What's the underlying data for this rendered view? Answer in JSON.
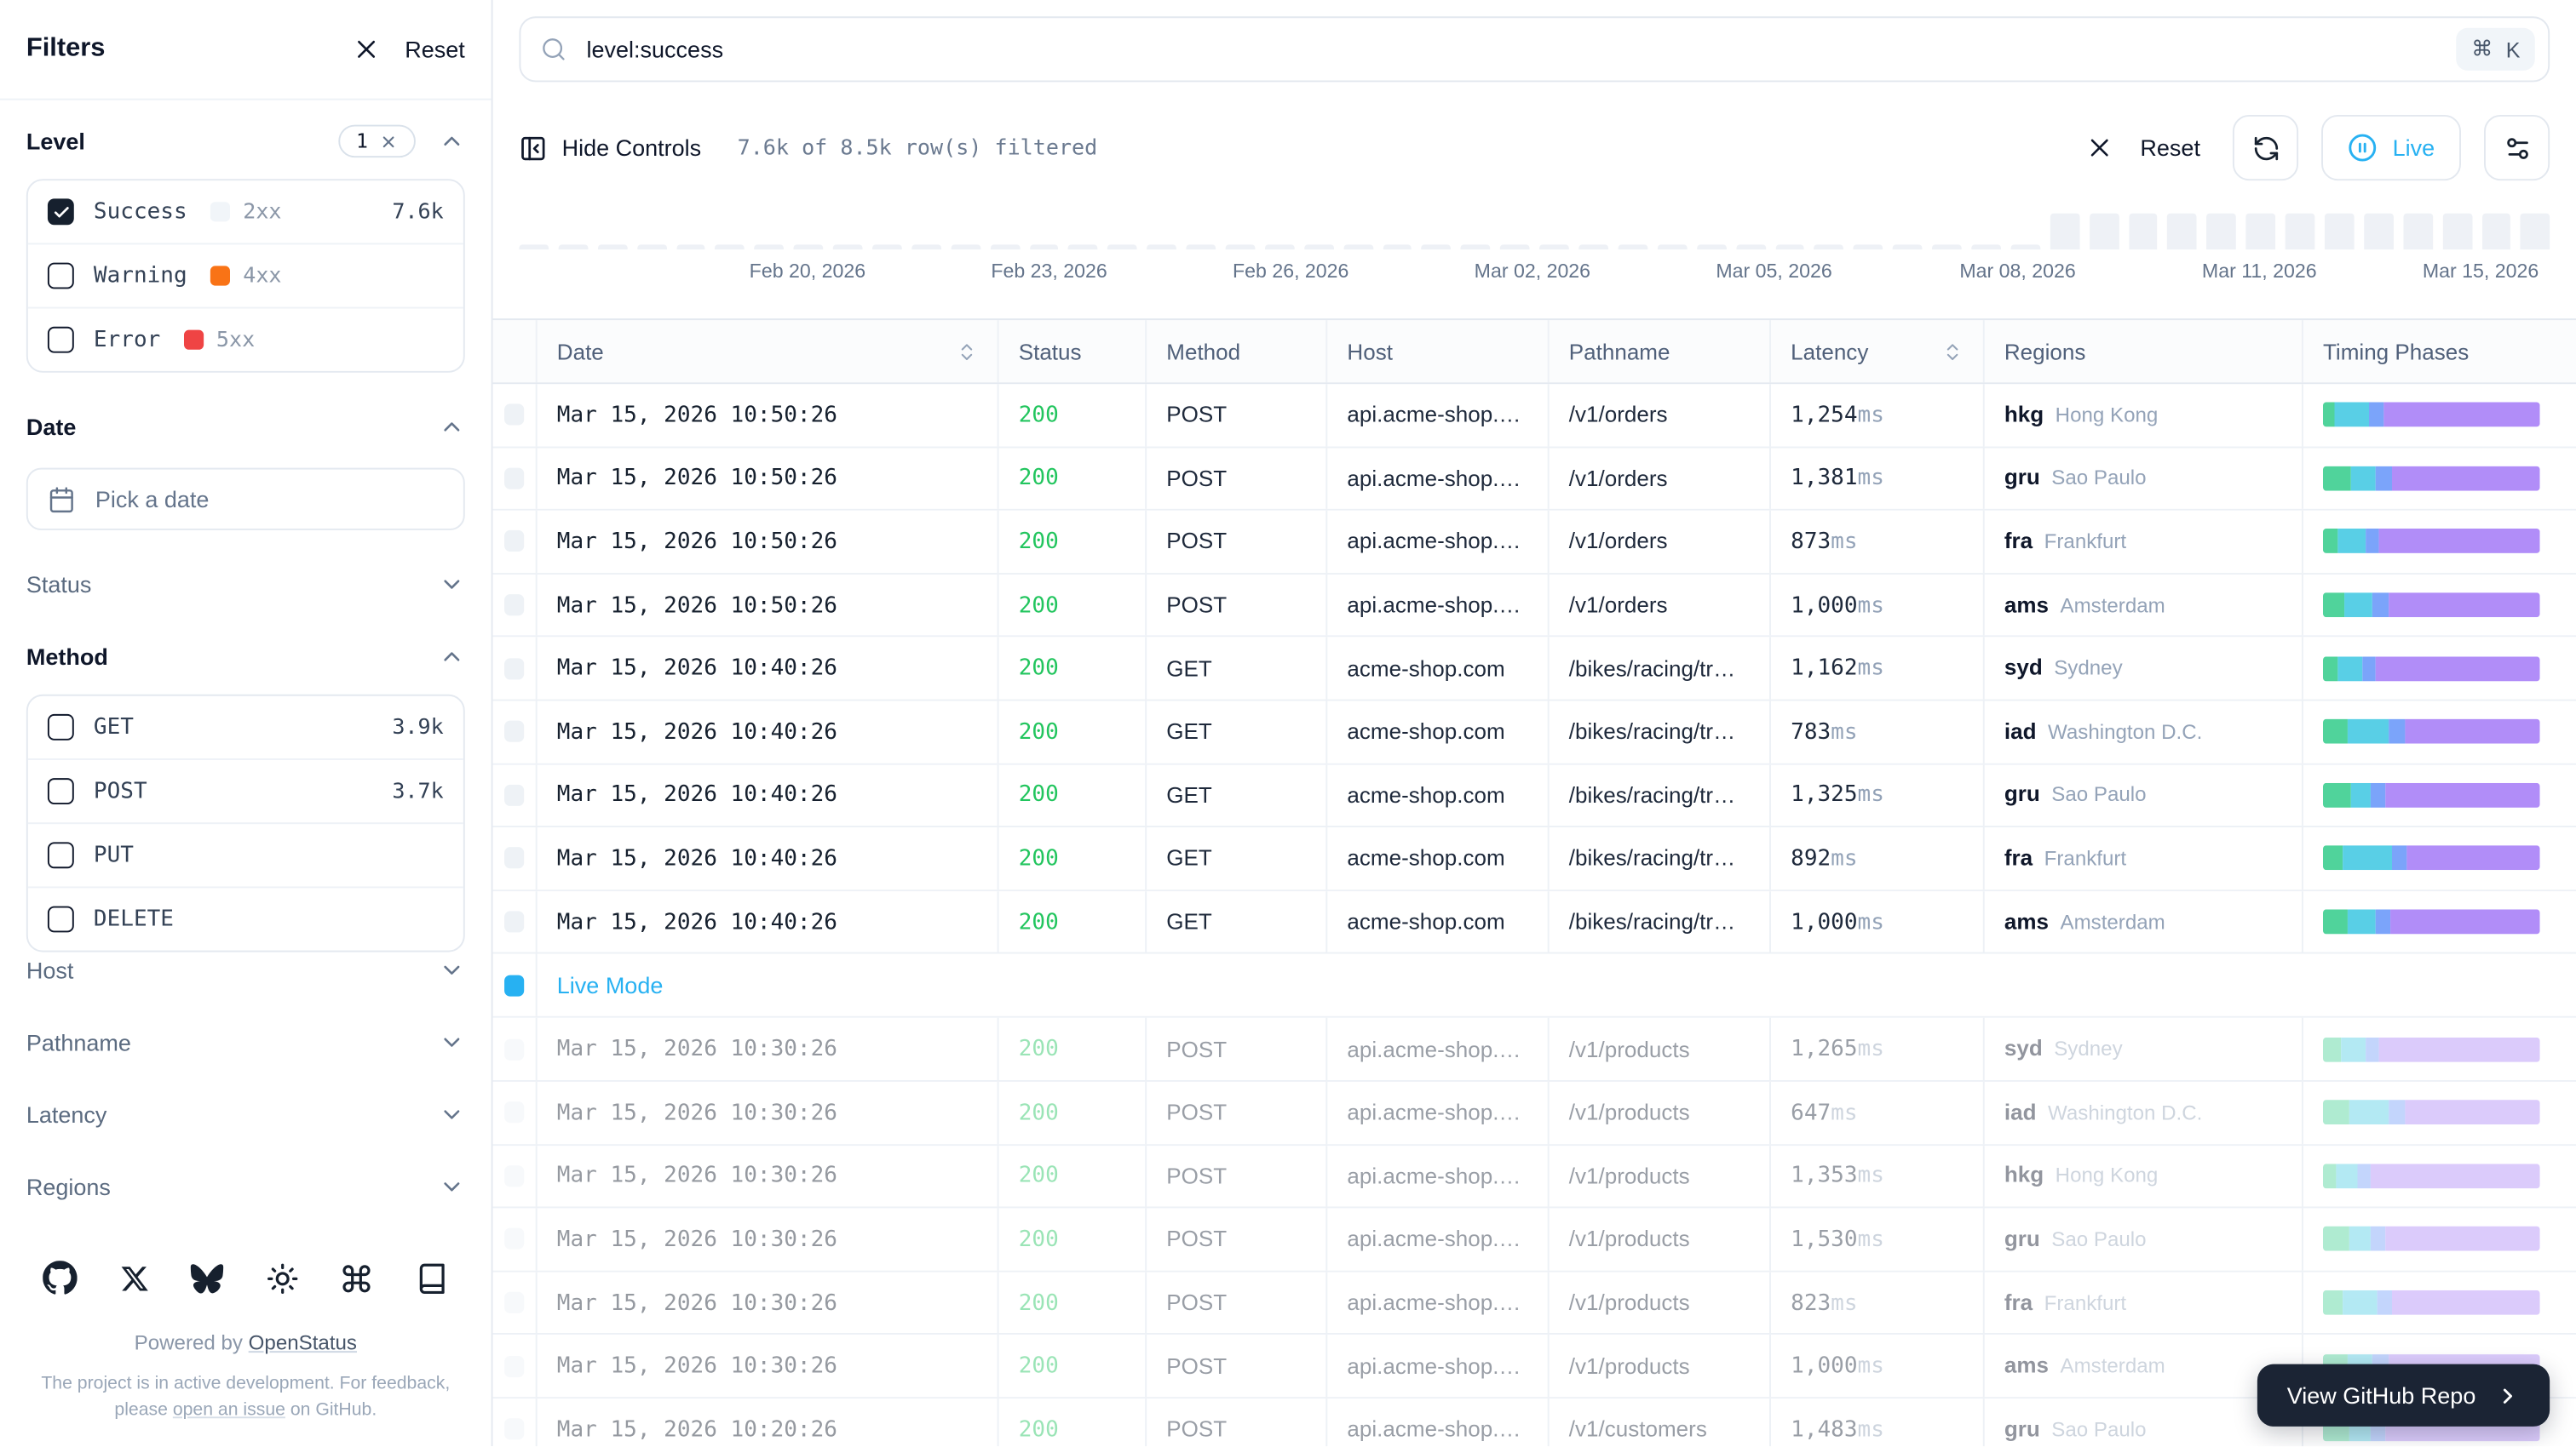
{
  "sidebar": {
    "title": "Filters",
    "reset_label": "Reset",
    "sections": {
      "level": {
        "label": "Level",
        "badge_count": "1",
        "items": [
          {
            "label": "Success",
            "code": "2xx",
            "swatch": "#f1f5f9",
            "count": "7.6k",
            "checked": true
          },
          {
            "label": "Warning",
            "code": "4xx",
            "swatch": "#f97316",
            "count": "",
            "checked": false
          },
          {
            "label": "Error",
            "code": "5xx",
            "swatch": "#ef4444",
            "count": "",
            "checked": false
          }
        ]
      },
      "date": {
        "label": "Date",
        "placeholder": "Pick a date"
      },
      "status": {
        "label": "Status"
      },
      "method": {
        "label": "Method",
        "items": [
          {
            "label": "GET",
            "count": "3.9k",
            "checked": false
          },
          {
            "label": "POST",
            "count": "3.7k",
            "checked": false
          },
          {
            "label": "PUT",
            "count": "",
            "checked": false
          },
          {
            "label": "DELETE",
            "count": "",
            "checked": false
          }
        ]
      },
      "collapsed": [
        {
          "label": "Host"
        },
        {
          "label": "Pathname"
        },
        {
          "label": "Latency"
        },
        {
          "label": "Regions"
        }
      ]
    },
    "footer": {
      "icons": [
        "github",
        "x",
        "bluesky",
        "sun",
        "command",
        "book"
      ],
      "powered_prefix": "Powered by ",
      "powered_link": "OpenStatus",
      "note_line1": "The project is in active development. For feedback,",
      "note_pre": "please ",
      "note_link": "open an issue",
      "note_post": " on GitHub."
    }
  },
  "search": {
    "value": "level:success",
    "shortcut_mod": "⌘",
    "shortcut_key": "K"
  },
  "toolbar": {
    "hide_controls": "Hide Controls",
    "filtered": "7.6k of 8.5k row(s) filtered",
    "reset": "Reset",
    "live": "Live"
  },
  "timeline": {
    "dates": [
      "Feb 20, 2026",
      "Feb 23, 2026",
      "Feb 26, 2026",
      "Mar 02, 2026",
      "Mar 05, 2026",
      "Mar 08, 2026",
      "Mar 11, 2026",
      "Mar 15, 2026"
    ],
    "bars": [
      3,
      3,
      3,
      3,
      3,
      3,
      3,
      3,
      3,
      3,
      3,
      3,
      3,
      3,
      3,
      3,
      3,
      3,
      3,
      3,
      3,
      3,
      3,
      3,
      3,
      3,
      3,
      3,
      3,
      3,
      3,
      3,
      3,
      3,
      3,
      3,
      3,
      3,
      3,
      22,
      22,
      22,
      22,
      22,
      22,
      22,
      22,
      22,
      22,
      22,
      22,
      22
    ]
  },
  "table": {
    "columns": [
      {
        "label": "",
        "sortable": false
      },
      {
        "label": "Date",
        "sortable": true
      },
      {
        "label": "Status",
        "sortable": false
      },
      {
        "label": "Method",
        "sortable": false
      },
      {
        "label": "Host",
        "sortable": false
      },
      {
        "label": "Pathname",
        "sortable": false
      },
      {
        "label": "Latency",
        "sortable": true
      },
      {
        "label": "Regions",
        "sortable": false
      },
      {
        "label": "Timing Phases",
        "sortable": false
      }
    ],
    "live_row_label": "Live Mode",
    "timing_colors": {
      "dns": "#50d39b",
      "connect": "#59cfe6",
      "tls": "#7ba4fa",
      "ttfb": "#b18df8"
    },
    "status_color": "#22c55e",
    "live_color": "#27b1f2",
    "rows": [
      {
        "type": "log",
        "date": "Mar 15, 2026 10:50:26",
        "status": "200",
        "method": "POST",
        "host": "api.acme-shop.…",
        "pathname": "/v1/orders",
        "latency": "1,254",
        "unit": "ms",
        "region_code": "hkg",
        "region_city": "Hong Kong",
        "faded": false,
        "timing": [
          5,
          16,
          7,
          72
        ]
      },
      {
        "type": "log",
        "date": "Mar 15, 2026 10:50:26",
        "status": "200",
        "method": "POST",
        "host": "api.acme-shop.…",
        "pathname": "/v1/orders",
        "latency": "1,381",
        "unit": "ms",
        "region_code": "gru",
        "region_city": "Sao Paulo",
        "faded": false,
        "timing": [
          13,
          11,
          8,
          68
        ]
      },
      {
        "type": "log",
        "date": "Mar 15, 2026 10:50:26",
        "status": "200",
        "method": "POST",
        "host": "api.acme-shop.…",
        "pathname": "/v1/orders",
        "latency": "873",
        "unit": "ms",
        "region_code": "fra",
        "region_city": "Frankfurt",
        "faded": false,
        "timing": [
          7,
          13,
          6,
          74
        ]
      },
      {
        "type": "log",
        "date": "Mar 15, 2026 10:50:26",
        "status": "200",
        "method": "POST",
        "host": "api.acme-shop.…",
        "pathname": "/v1/orders",
        "latency": "1,000",
        "unit": "ms",
        "region_code": "ams",
        "region_city": "Amsterdam",
        "faded": false,
        "timing": [
          10,
          13,
          7,
          70
        ]
      },
      {
        "type": "log",
        "date": "Mar 15, 2026 10:40:26",
        "status": "200",
        "method": "GET",
        "host": "acme-shop.com",
        "pathname": "/bikes/racing/tr…",
        "latency": "1,162",
        "unit": "ms",
        "region_code": "syd",
        "region_city": "Sydney",
        "faded": false,
        "timing": [
          7,
          11,
          6,
          76
        ]
      },
      {
        "type": "log",
        "date": "Mar 15, 2026 10:40:26",
        "status": "200",
        "method": "GET",
        "host": "acme-shop.com",
        "pathname": "/bikes/racing/tr…",
        "latency": "783",
        "unit": "ms",
        "region_code": "iad",
        "region_city": "Washington D.C.",
        "faded": false,
        "timing": [
          11,
          19,
          8,
          62
        ]
      },
      {
        "type": "log",
        "date": "Mar 15, 2026 10:40:26",
        "status": "200",
        "method": "GET",
        "host": "acme-shop.com",
        "pathname": "/bikes/racing/tr…",
        "latency": "1,325",
        "unit": "ms",
        "region_code": "gru",
        "region_city": "Sao Paulo",
        "faded": false,
        "timing": [
          13,
          9,
          7,
          71
        ]
      },
      {
        "type": "log",
        "date": "Mar 15, 2026 10:40:26",
        "status": "200",
        "method": "GET",
        "host": "acme-shop.com",
        "pathname": "/bikes/racing/tr…",
        "latency": "892",
        "unit": "ms",
        "region_code": "fra",
        "region_city": "Frankfurt",
        "faded": false,
        "timing": [
          9,
          23,
          7,
          61
        ]
      },
      {
        "type": "log",
        "date": "Mar 15, 2026 10:40:26",
        "status": "200",
        "method": "GET",
        "host": "acme-shop.com",
        "pathname": "/bikes/racing/tr…",
        "latency": "1,000",
        "unit": "ms",
        "region_code": "ams",
        "region_city": "Amsterdam",
        "faded": false,
        "timing": [
          11,
          13,
          7,
          69
        ]
      },
      {
        "type": "live"
      },
      {
        "type": "log",
        "date": "Mar 15, 2026 10:30:26",
        "status": "200",
        "method": "POST",
        "host": "api.acme-shop.…",
        "pathname": "/v1/products",
        "latency": "1,265",
        "unit": "ms",
        "region_code": "syd",
        "region_city": "Sydney",
        "faded": true,
        "timing": [
          8,
          12,
          6,
          74
        ]
      },
      {
        "type": "log",
        "date": "Mar 15, 2026 10:30:26",
        "status": "200",
        "method": "POST",
        "host": "api.acme-shop.…",
        "pathname": "/v1/products",
        "latency": "647",
        "unit": "ms",
        "region_code": "iad",
        "region_city": "Washington D.C.",
        "faded": true,
        "timing": [
          12,
          18,
          8,
          62
        ]
      },
      {
        "type": "log",
        "date": "Mar 15, 2026 10:30:26",
        "status": "200",
        "method": "POST",
        "host": "api.acme-shop.…",
        "pathname": "/v1/products",
        "latency": "1,353",
        "unit": "ms",
        "region_code": "hkg",
        "region_city": "Hong Kong",
        "faded": true,
        "timing": [
          6,
          10,
          6,
          78
        ]
      },
      {
        "type": "log",
        "date": "Mar 15, 2026 10:30:26",
        "status": "200",
        "method": "POST",
        "host": "api.acme-shop.…",
        "pathname": "/v1/products",
        "latency": "1,530",
        "unit": "ms",
        "region_code": "gru",
        "region_city": "Sao Paulo",
        "faded": true,
        "timing": [
          12,
          10,
          7,
          71
        ]
      },
      {
        "type": "log",
        "date": "Mar 15, 2026 10:30:26",
        "status": "200",
        "method": "POST",
        "host": "api.acme-shop.…",
        "pathname": "/v1/products",
        "latency": "823",
        "unit": "ms",
        "region_code": "fra",
        "region_city": "Frankfurt",
        "faded": true,
        "timing": [
          9,
          16,
          7,
          68
        ]
      },
      {
        "type": "log",
        "date": "Mar 15, 2026 10:30:26",
        "status": "200",
        "method": "POST",
        "host": "api.acme-shop.…",
        "pathname": "/v1/products",
        "latency": "1,000",
        "unit": "ms",
        "region_code": "ams",
        "region_city": "Amsterdam",
        "faded": true,
        "timing": [
          11,
          12,
          7,
          70
        ]
      },
      {
        "type": "log",
        "date": "Mar 15, 2026 10:20:26",
        "status": "200",
        "method": "POST",
        "host": "api.acme-shop.…",
        "pathname": "/v1/customers",
        "latency": "1,483",
        "unit": "ms",
        "region_code": "gru",
        "region_city": "Sao Paulo",
        "faded": true,
        "timing": [
          12,
          10,
          7,
          71
        ]
      }
    ]
  },
  "github_button": {
    "label": "View GitHub Repo"
  }
}
